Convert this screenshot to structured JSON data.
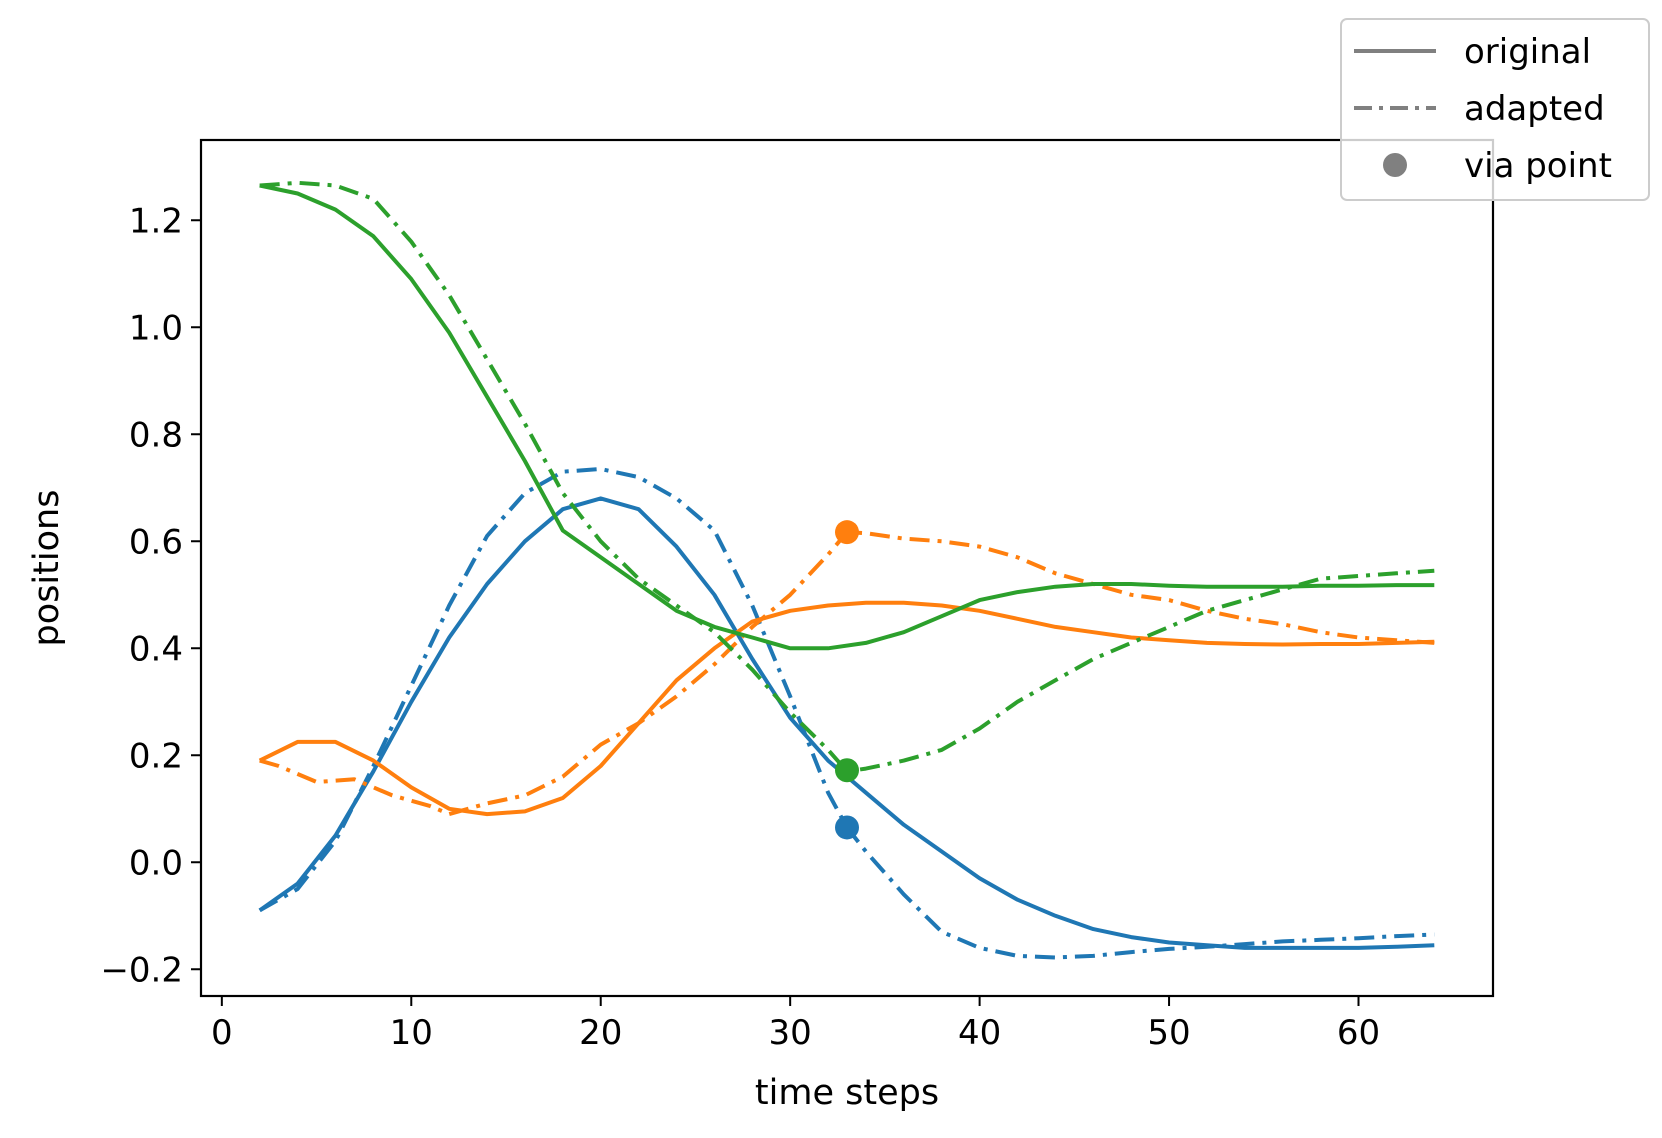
{
  "chart_data": {
    "type": "line",
    "xlabel": "time steps",
    "ylabel": "positions",
    "xlim": [
      -1.1,
      67.1
    ],
    "ylim": [
      -0.25,
      1.35
    ],
    "xticks": [
      0,
      10,
      20,
      30,
      40,
      50,
      60
    ],
    "xtick_labels": [
      "0",
      "10",
      "20",
      "30",
      "40",
      "50",
      "60"
    ],
    "yticks": [
      -0.2,
      0.0,
      0.2,
      0.4,
      0.6,
      0.8,
      1.0,
      1.2
    ],
    "ytick_labels": [
      "−0.2",
      "0.0",
      "0.2",
      "0.4",
      "0.6",
      "0.8",
      "1.0",
      "1.2"
    ],
    "grid": false,
    "legend_position": "top-right",
    "legend": [
      {
        "label": "original",
        "style": "solid"
      },
      {
        "label": "adapted",
        "style": "dashdot"
      },
      {
        "label": "via point",
        "style": "marker"
      }
    ],
    "colors": {
      "blue": "#1f77b4",
      "orange": "#ff7f0e",
      "green": "#2ca02c",
      "legend_gray": "#808080"
    },
    "series": [
      {
        "color": "blue",
        "style": "solid",
        "x": [
          2,
          4,
          6,
          8,
          10,
          12,
          14,
          16,
          18,
          20,
          22,
          24,
          26,
          28,
          30,
          32,
          34,
          36,
          38,
          40,
          42,
          44,
          46,
          48,
          50,
          52,
          54,
          56,
          58,
          60,
          62,
          64
        ],
        "y": [
          -0.09,
          -0.04,
          0.05,
          0.17,
          0.3,
          0.42,
          0.52,
          0.6,
          0.66,
          0.68,
          0.66,
          0.59,
          0.5,
          0.38,
          0.27,
          0.19,
          0.13,
          0.07,
          0.02,
          -0.03,
          -0.07,
          -0.1,
          -0.125,
          -0.14,
          -0.15,
          -0.155,
          -0.16,
          -0.16,
          -0.16,
          -0.16,
          -0.158,
          -0.155
        ]
      },
      {
        "color": "blue",
        "style": "dashdot",
        "x": [
          2,
          4,
          6,
          8,
          10,
          12,
          14,
          16,
          18,
          20,
          22,
          24,
          26,
          28,
          30,
          32,
          33,
          34,
          36,
          38,
          40,
          42,
          44,
          46,
          48,
          50,
          52,
          54,
          56,
          58,
          60,
          62,
          64
        ],
        "y": [
          -0.09,
          -0.05,
          0.04,
          0.18,
          0.33,
          0.48,
          0.61,
          0.69,
          0.73,
          0.735,
          0.72,
          0.68,
          0.62,
          0.48,
          0.31,
          0.13,
          0.065,
          0.02,
          -0.06,
          -0.13,
          -0.16,
          -0.175,
          -0.178,
          -0.175,
          -0.168,
          -0.162,
          -0.158,
          -0.153,
          -0.148,
          -0.145,
          -0.142,
          -0.138,
          -0.135
        ]
      },
      {
        "color": "orange",
        "style": "solid",
        "x": [
          2,
          4,
          6,
          8,
          10,
          12,
          14,
          16,
          18,
          20,
          22,
          24,
          26,
          28,
          30,
          32,
          34,
          36,
          38,
          40,
          42,
          44,
          46,
          48,
          50,
          52,
          54,
          56,
          58,
          60,
          62,
          64
        ],
        "y": [
          0.19,
          0.225,
          0.225,
          0.19,
          0.14,
          0.1,
          0.09,
          0.095,
          0.12,
          0.18,
          0.26,
          0.34,
          0.4,
          0.45,
          0.47,
          0.48,
          0.485,
          0.485,
          0.48,
          0.47,
          0.455,
          0.44,
          0.43,
          0.42,
          0.415,
          0.41,
          0.408,
          0.407,
          0.408,
          0.408,
          0.41,
          0.412
        ]
      },
      {
        "color": "orange",
        "style": "dashdot",
        "x": [
          2,
          3,
          5,
          7,
          9,
          11,
          12,
          14,
          16,
          18,
          20,
          22,
          24,
          26,
          28,
          30,
          32,
          33,
          34,
          36,
          38,
          40,
          42,
          44,
          46,
          48,
          50,
          52,
          54,
          56,
          58,
          60,
          62,
          64
        ],
        "y": [
          0.19,
          0.18,
          0.15,
          0.155,
          0.125,
          0.105,
          0.09,
          0.11,
          0.125,
          0.16,
          0.22,
          0.26,
          0.31,
          0.37,
          0.44,
          0.5,
          0.575,
          0.617,
          0.615,
          0.605,
          0.6,
          0.59,
          0.57,
          0.54,
          0.52,
          0.5,
          0.49,
          0.47,
          0.455,
          0.445,
          0.43,
          0.42,
          0.415,
          0.41
        ]
      },
      {
        "color": "green",
        "style": "solid",
        "x": [
          2,
          4,
          6,
          8,
          10,
          12,
          14,
          16,
          18,
          20,
          22,
          24,
          26,
          28,
          30,
          32,
          34,
          36,
          38,
          40,
          42,
          44,
          46,
          48,
          50,
          52,
          54,
          56,
          58,
          60,
          62,
          64
        ],
        "y": [
          1.265,
          1.25,
          1.22,
          1.17,
          1.09,
          0.99,
          0.87,
          0.75,
          0.62,
          0.57,
          0.52,
          0.47,
          0.44,
          0.42,
          0.4,
          0.4,
          0.41,
          0.43,
          0.46,
          0.49,
          0.505,
          0.515,
          0.52,
          0.52,
          0.517,
          0.515,
          0.515,
          0.515,
          0.517,
          0.517,
          0.518,
          0.518
        ]
      },
      {
        "color": "green",
        "style": "dashdot",
        "x": [
          2,
          4,
          6,
          8,
          10,
          12,
          14,
          16,
          18,
          20,
          22,
          24,
          26,
          28,
          30,
          32,
          33,
          34,
          36,
          38,
          40,
          42,
          44,
          46,
          48,
          50,
          52,
          54,
          56,
          58,
          60,
          62,
          64
        ],
        "y": [
          1.265,
          1.27,
          1.265,
          1.24,
          1.16,
          1.06,
          0.94,
          0.82,
          0.69,
          0.6,
          0.53,
          0.48,
          0.43,
          0.36,
          0.28,
          0.21,
          0.17,
          0.175,
          0.19,
          0.21,
          0.25,
          0.3,
          0.34,
          0.38,
          0.41,
          0.44,
          0.47,
          0.49,
          0.51,
          0.53,
          0.535,
          0.54,
          0.545
        ]
      }
    ],
    "via_points": [
      {
        "color": "blue",
        "x": 33,
        "y": 0.065
      },
      {
        "color": "orange",
        "x": 33,
        "y": 0.617
      },
      {
        "color": "green",
        "x": 33,
        "y": 0.172
      }
    ]
  }
}
